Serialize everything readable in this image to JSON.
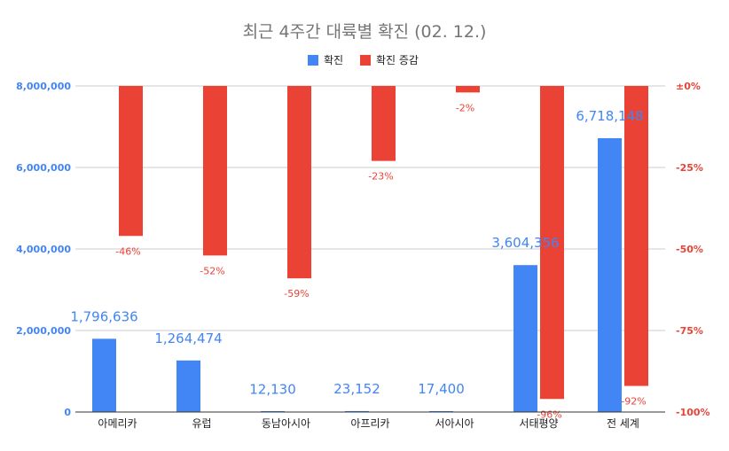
{
  "chart_data": {
    "type": "bar",
    "title": "최근 4주간 대륙별 확진 (02. 12.)",
    "categories": [
      "아메리카",
      "유럽",
      "동남아시아",
      "아프리카",
      "서아시아",
      "서태평양",
      "전 세계"
    ],
    "series": [
      {
        "name": "확진",
        "axis": "left",
        "color": "#4285f4",
        "values": [
          1796636,
          1264474,
          12130,
          23152,
          17400,
          3604356,
          6718148
        ],
        "labels": [
          "1,796,636",
          "1,264,474",
          "12,130",
          "23,152",
          "17,400",
          "3,604,356",
          "6,718,148"
        ]
      },
      {
        "name": "확진 증감",
        "axis": "right",
        "color": "#ea4335",
        "values": [
          -46,
          -52,
          -59,
          -23,
          -2,
          -96,
          -92
        ],
        "labels": [
          "-46%",
          "-52%",
          "-59%",
          "-23%",
          "-2%",
          "-96%",
          "-92%"
        ]
      }
    ],
    "left_axis": {
      "ylim": [
        0,
        8000000
      ],
      "ticks": [
        0,
        2000000,
        4000000,
        6000000,
        8000000
      ],
      "tick_labels": [
        "0",
        "2,000,000",
        "4,000,000",
        "6,000,000",
        "8,000,000"
      ]
    },
    "right_axis": {
      "ylim": [
        -100,
        0
      ],
      "ticks": [
        0,
        -25,
        -50,
        -75,
        -100
      ],
      "tick_labels": [
        "±0%",
        "-25%",
        "-50%",
        "-75%",
        "-100%"
      ]
    },
    "legend_position": "top-center",
    "grid": true
  }
}
